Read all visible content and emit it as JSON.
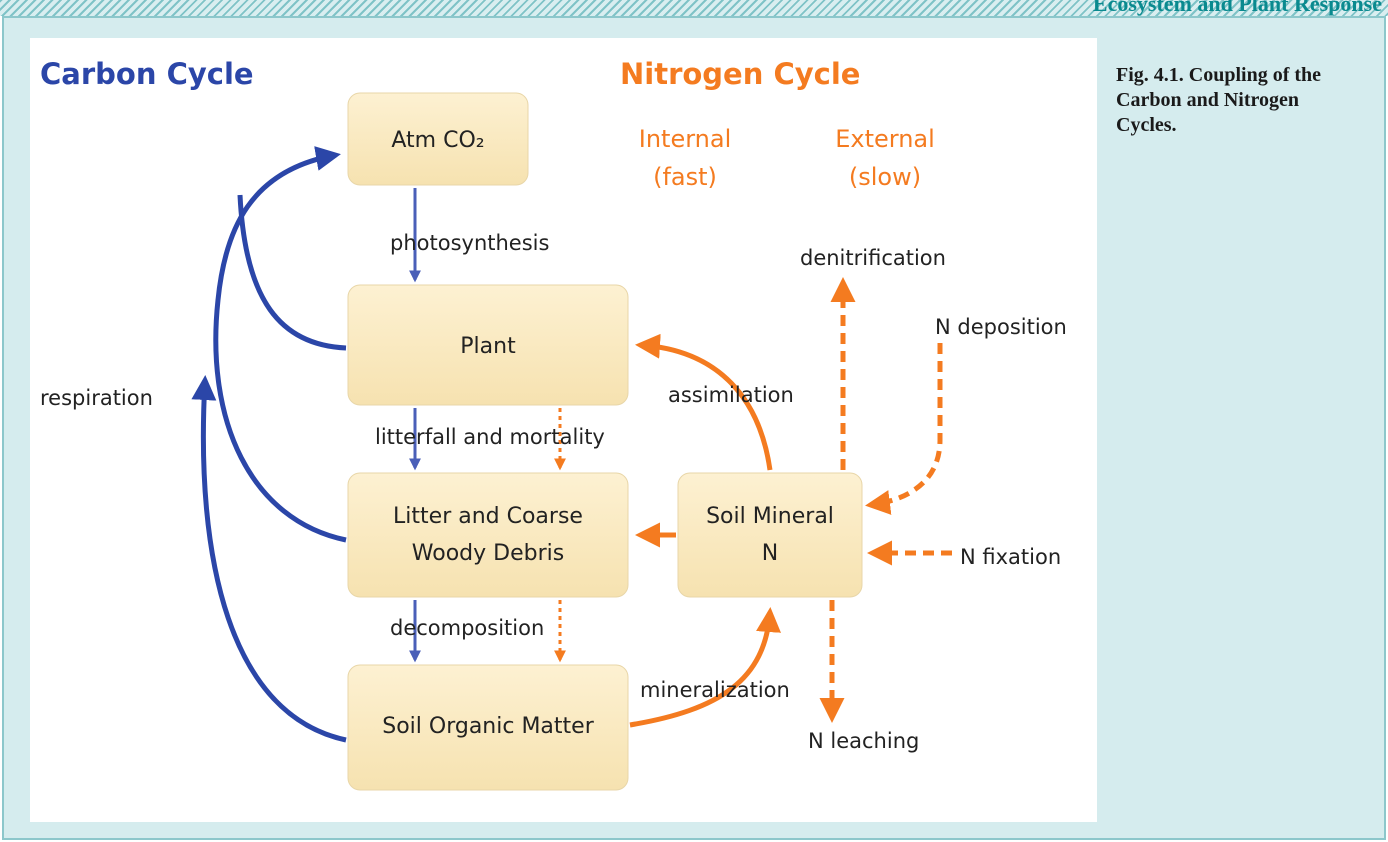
{
  "header": {
    "section": "Ecosystem and Plant Response"
  },
  "diagram": {
    "carbon_title": "Carbon Cycle",
    "nitrogen_title": "Nitrogen Cycle",
    "internal": [
      "Internal",
      "(fast)"
    ],
    "external": [
      "External",
      "(slow)"
    ],
    "nodes": [
      {
        "label": [
          "Atm CO₂"
        ]
      },
      {
        "label": [
          "Plant"
        ]
      },
      {
        "label": [
          "Litter and Coarse",
          "Woody Debris"
        ]
      },
      {
        "label": [
          "Soil Organic Matter"
        ]
      },
      {
        "label": [
          "Soil Mineral",
          "N"
        ]
      }
    ],
    "flows": {
      "photosynthesis": "photosynthesis",
      "respiration": "respiration",
      "litterfall": "litterfall and mortality",
      "decomposition": "decomposition",
      "assimilation": "assimilation",
      "mineralization": "mineralization",
      "denitrification": "denitrification",
      "deposition": "N deposition",
      "fixation": "N fixation",
      "leaching": "N leaching"
    }
  },
  "caption": "Fig. 4.1. Coupling of the Carbon and Nitrogen Cycles."
}
